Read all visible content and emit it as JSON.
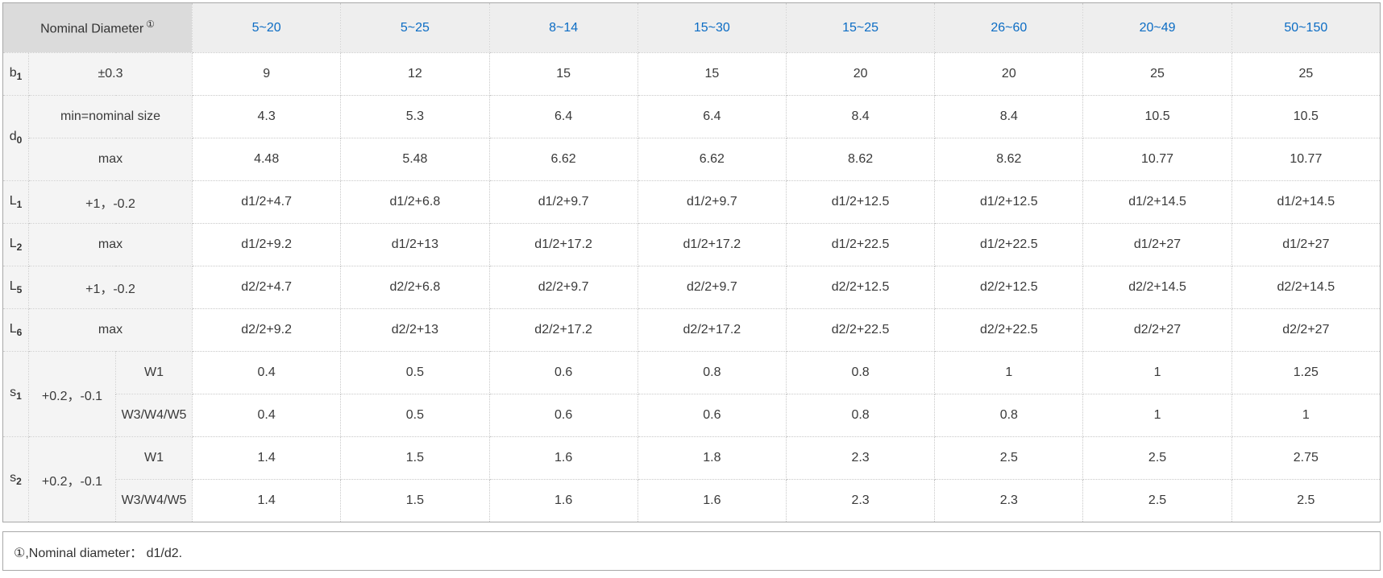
{
  "chart_data": {
    "type": "table",
    "corner_header": "Nominal Diameter",
    "footnote_mark": "①",
    "columns": [
      "5~20",
      "5~25",
      "8~14",
      "15~30",
      "15~25",
      "26~60",
      "20~49",
      "50~150"
    ],
    "rows": [
      {
        "label": {
          "base": "b",
          "sub": "1"
        },
        "spec": "±0.3",
        "values": [
          "9",
          "12",
          "15",
          "15",
          "20",
          "20",
          "25",
          "25"
        ]
      },
      {
        "label": {
          "base": "d",
          "sub": "0"
        },
        "spec": "min=nominal size",
        "values": [
          "4.3",
          "5.3",
          "6.4",
          "6.4",
          "8.4",
          "8.4",
          "10.5",
          "10.5"
        ]
      },
      {
        "spec": "max",
        "values": [
          "4.48",
          "5.48",
          "6.62",
          "6.62",
          "8.62",
          "8.62",
          "10.77",
          "10.77"
        ]
      },
      {
        "label": {
          "base": "L",
          "sub": "1"
        },
        "spec": "+1，-0.2",
        "values": [
          "d1/2+4.7",
          "d1/2+6.8",
          "d1/2+9.7",
          "d1/2+9.7",
          "d1/2+12.5",
          "d1/2+12.5",
          "d1/2+14.5",
          "d1/2+14.5"
        ]
      },
      {
        "label": {
          "base": "L",
          "sub": "2"
        },
        "spec": "max",
        "values": [
          "d1/2+9.2",
          "d1/2+13",
          "d1/2+17.2",
          "d1/2+17.2",
          "d1/2+22.5",
          "d1/2+22.5",
          "d1/2+27",
          "d1/2+27"
        ]
      },
      {
        "label": {
          "base": "L",
          "sub": "5"
        },
        "spec": "+1，-0.2",
        "values": [
          "d2/2+4.7",
          "d2/2+6.8",
          "d2/2+9.7",
          "d2/2+9.7",
          "d2/2+12.5",
          "d2/2+12.5",
          "d2/2+14.5",
          "d2/2+14.5"
        ]
      },
      {
        "label": {
          "base": "L",
          "sub": "6"
        },
        "spec": "max",
        "values": [
          "d2/2+9.2",
          "d2/2+13",
          "d2/2+17.2",
          "d2/2+17.2",
          "d2/2+22.5",
          "d2/2+22.5",
          "d2/2+27",
          "d2/2+27"
        ]
      },
      {
        "label": {
          "base": "s",
          "sub": "1"
        },
        "spec": "+0.2，-0.1",
        "type": "W1",
        "values": [
          "0.4",
          "0.5",
          "0.6",
          "0.8",
          "0.8",
          "1",
          "1",
          "1.25"
        ]
      },
      {
        "type": "W3/W4/W5",
        "values": [
          "0.4",
          "0.5",
          "0.6",
          "0.6",
          "0.8",
          "0.8",
          "1",
          "1"
        ]
      },
      {
        "label": {
          "base": "s",
          "sub": "2"
        },
        "spec": "+0.2，-0.1",
        "type": "W1",
        "values": [
          "1.4",
          "1.5",
          "1.6",
          "1.8",
          "2.3",
          "2.5",
          "2.5",
          "2.75"
        ]
      },
      {
        "type": "W3/W4/W5",
        "values": [
          "1.4",
          "1.5",
          "1.6",
          "1.6",
          "2.3",
          "2.3",
          "2.5",
          "2.5"
        ]
      }
    ],
    "footnote": "①,Nominal diameter： d1/d2."
  },
  "colors": {
    "column_header_text": "#0b6cc4",
    "corner_header_bg": "#dbdbdb",
    "column_header_bg": "#eeeeee",
    "side_cell_bg": "#f4f4f4",
    "grid_border": "#c8c8c8",
    "outer_border": "#a8a8a8",
    "body_text": "#333333"
  }
}
